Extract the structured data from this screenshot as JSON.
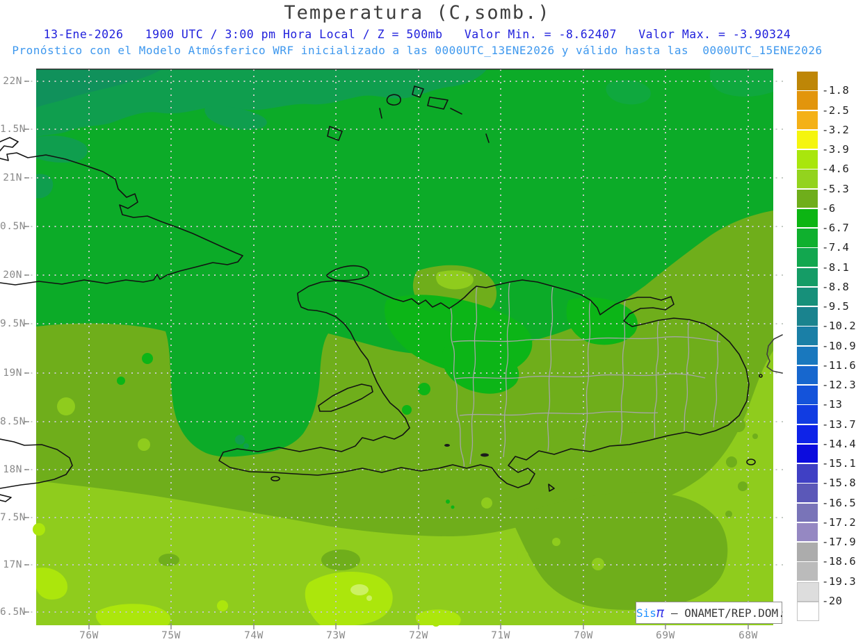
{
  "header": {
    "title": "Temperatura (C,somb.)",
    "line2": "13-Ene-2026   1900 UTC / 3:00 pm Hora Local / Z = 500mb   Valor Min. = -8.62407   Valor Max. = -3.90324",
    "line3": "Pronóstico con el Modelo Atmósferico WRF inicializado a las 0000UTC_13ENE2026 y válido hasta las  0000UTC_15ENE2026"
  },
  "axes": {
    "lat_labels": [
      "22N",
      "1.5N",
      "21N",
      "0.5N",
      "20N",
      "9.5N",
      "19N",
      "8.5N",
      "18N",
      "7.5N",
      "17N",
      "6.5N"
    ],
    "lon_labels": [
      "76W",
      "75W",
      "74W",
      "73W",
      "72W",
      "71W",
      "70W",
      "69W",
      "68W"
    ]
  },
  "colorbar": {
    "labels": [
      "-1.8",
      "-2.5",
      "-3.2",
      "-3.9",
      "-4.6",
      "-5.3",
      "-6",
      "-6.7",
      "-7.4",
      "-8.1",
      "-8.8",
      "-9.5",
      "-10.2",
      "-10.9",
      "-11.6",
      "-12.3",
      "-13",
      "-13.7",
      "-14.4",
      "-15.1",
      "-15.8",
      "-16.5",
      "-17.2",
      "-17.9",
      "-18.6",
      "-19.3",
      "-20"
    ],
    "colors": [
      "#BE8607",
      "#E2950C",
      "#F4B117",
      "#F5F50F",
      "#A9E60D",
      "#93D31E",
      "#6FAE1B",
      "#0CB513",
      "#0FB02E",
      "#12A74F",
      "#159C66",
      "#17907A",
      "#1A838E",
      "#1A7FA6",
      "#1978BE",
      "#1767CE",
      "#1453DA",
      "#113CE2",
      "#0E23E8",
      "#0C0CDE",
      "#4040C4",
      "#5B58B8",
      "#7974B8",
      "#9588C2",
      "#ACACAC",
      "#BBBBBB",
      "#DDDDDD",
      "#FFFFFF"
    ]
  },
  "map": {
    "palette": {
      "base": "#0CAB28",
      "teal": "#0F9E4E",
      "teal2": "#10915B",
      "subtle": "#0FA83E",
      "bright": "#0CB517",
      "olive": "#6FAE1B",
      "light": "#8FCC1D",
      "yellow": "#ACE60C",
      "pale": "#CCF163",
      "coast": "#121212",
      "province": "#A6A6A6",
      "grid": "#C4CAC4"
    },
    "attribution": {
      "sis": "Sis",
      "pi": "π",
      "sep": " — ",
      "org": "ONAMET/REP.DOM."
    }
  }
}
